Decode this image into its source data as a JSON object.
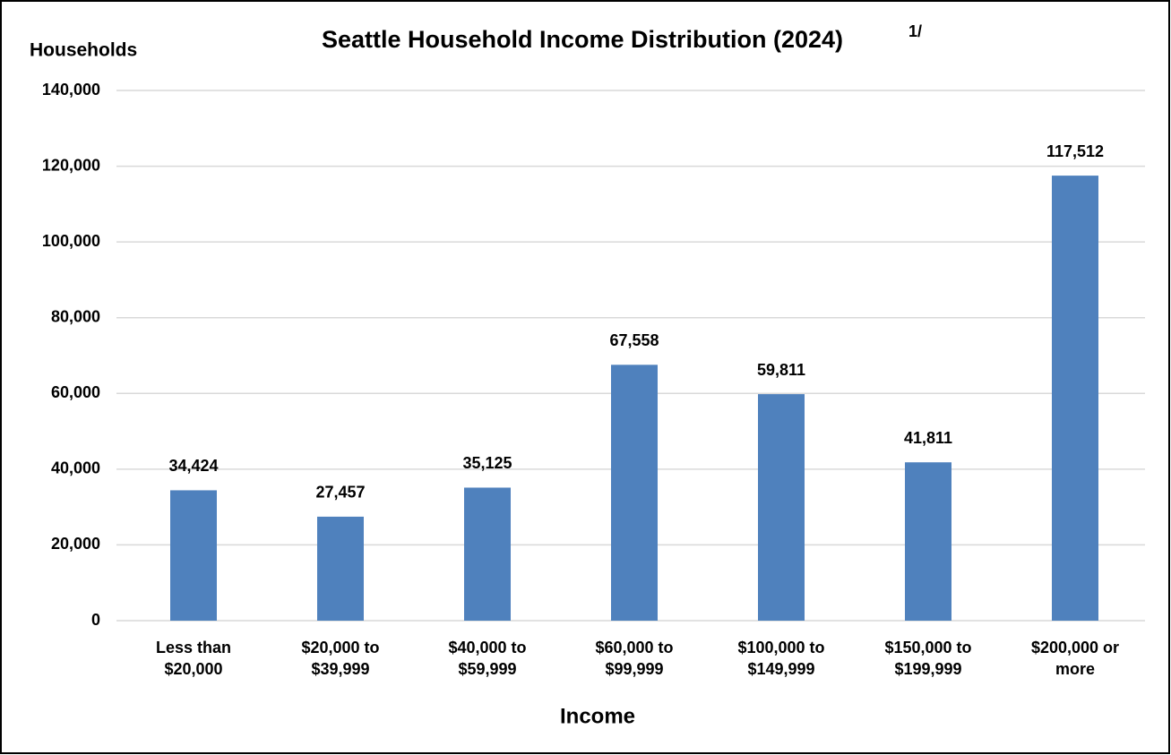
{
  "chart_data": {
    "type": "bar",
    "title": "Seattle Household Income Distribution (2024)",
    "title_note": "1/",
    "y_label": "Households",
    "x_label": "Income",
    "categories": [
      "Less than $20,000",
      "$20,000 to $39,999",
      "$40,000 to $59,999",
      "$60,000 to $99,999",
      "$100,000 to $149,999",
      "$150,000 to $199,999",
      "$200,000 or more"
    ],
    "values": [
      34424,
      27457,
      35125,
      67558,
      59811,
      41811,
      117512
    ],
    "value_labels": [
      "34,424",
      "27,457",
      "35,125",
      "67,558",
      "59,811",
      "41,811",
      "117,512"
    ],
    "color": "#4f81bd",
    "ylim": [
      0,
      140000
    ],
    "yticks": [
      0,
      {
        "value": 20000,
        "label": "20,000"
      },
      {
        "value": 40000,
        "label": "40,000"
      },
      {
        "value": 60000,
        "label": "60,000"
      },
      {
        "value": 80000,
        "label": "80,000"
      },
      {
        "value": 100000,
        "label": "100,000"
      },
      {
        "value": 120000,
        "label": "120,000"
      },
      {
        "value": 140000,
        "label": "140,000"
      }
    ],
    "grid": true
  }
}
